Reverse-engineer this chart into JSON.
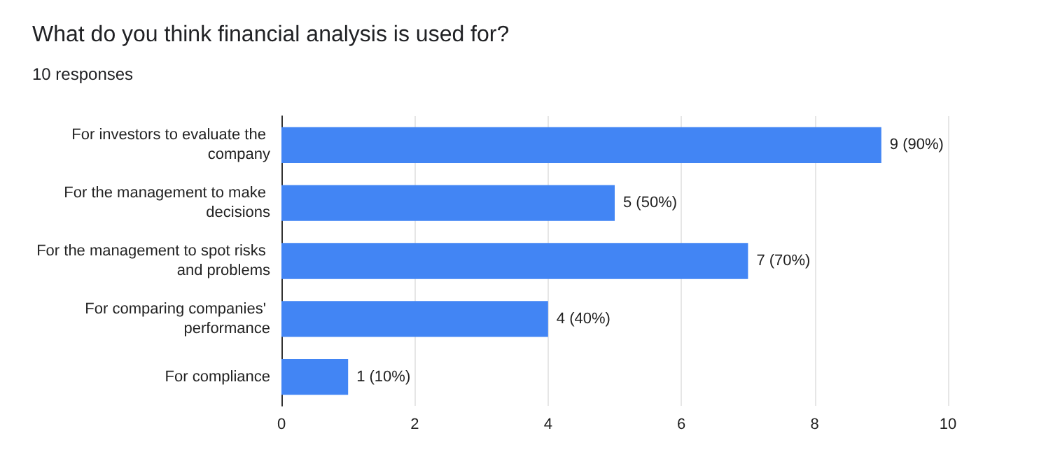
{
  "chart_data": {
    "type": "bar",
    "orientation": "horizontal",
    "title": "What do you think financial analysis is used for?",
    "subtitle": "10 responses",
    "categories": [
      "For investors to evaluate the company",
      "For the management to make decisions",
      "For the management to spot risks and problems",
      "For comparing companies' performance",
      "For compliance"
    ],
    "series": [
      {
        "color": "#4285f4",
        "values": [
          9,
          5,
          7,
          4,
          1
        ],
        "value_labels": [
          "9 (90%)",
          "5 (50%)",
          "7 (70%)",
          "4 (40%)",
          "1 (10%)"
        ]
      }
    ],
    "xlim": [
      0,
      10
    ],
    "xticks": [
      0,
      2,
      4,
      6,
      8,
      10
    ],
    "grid": "x"
  }
}
